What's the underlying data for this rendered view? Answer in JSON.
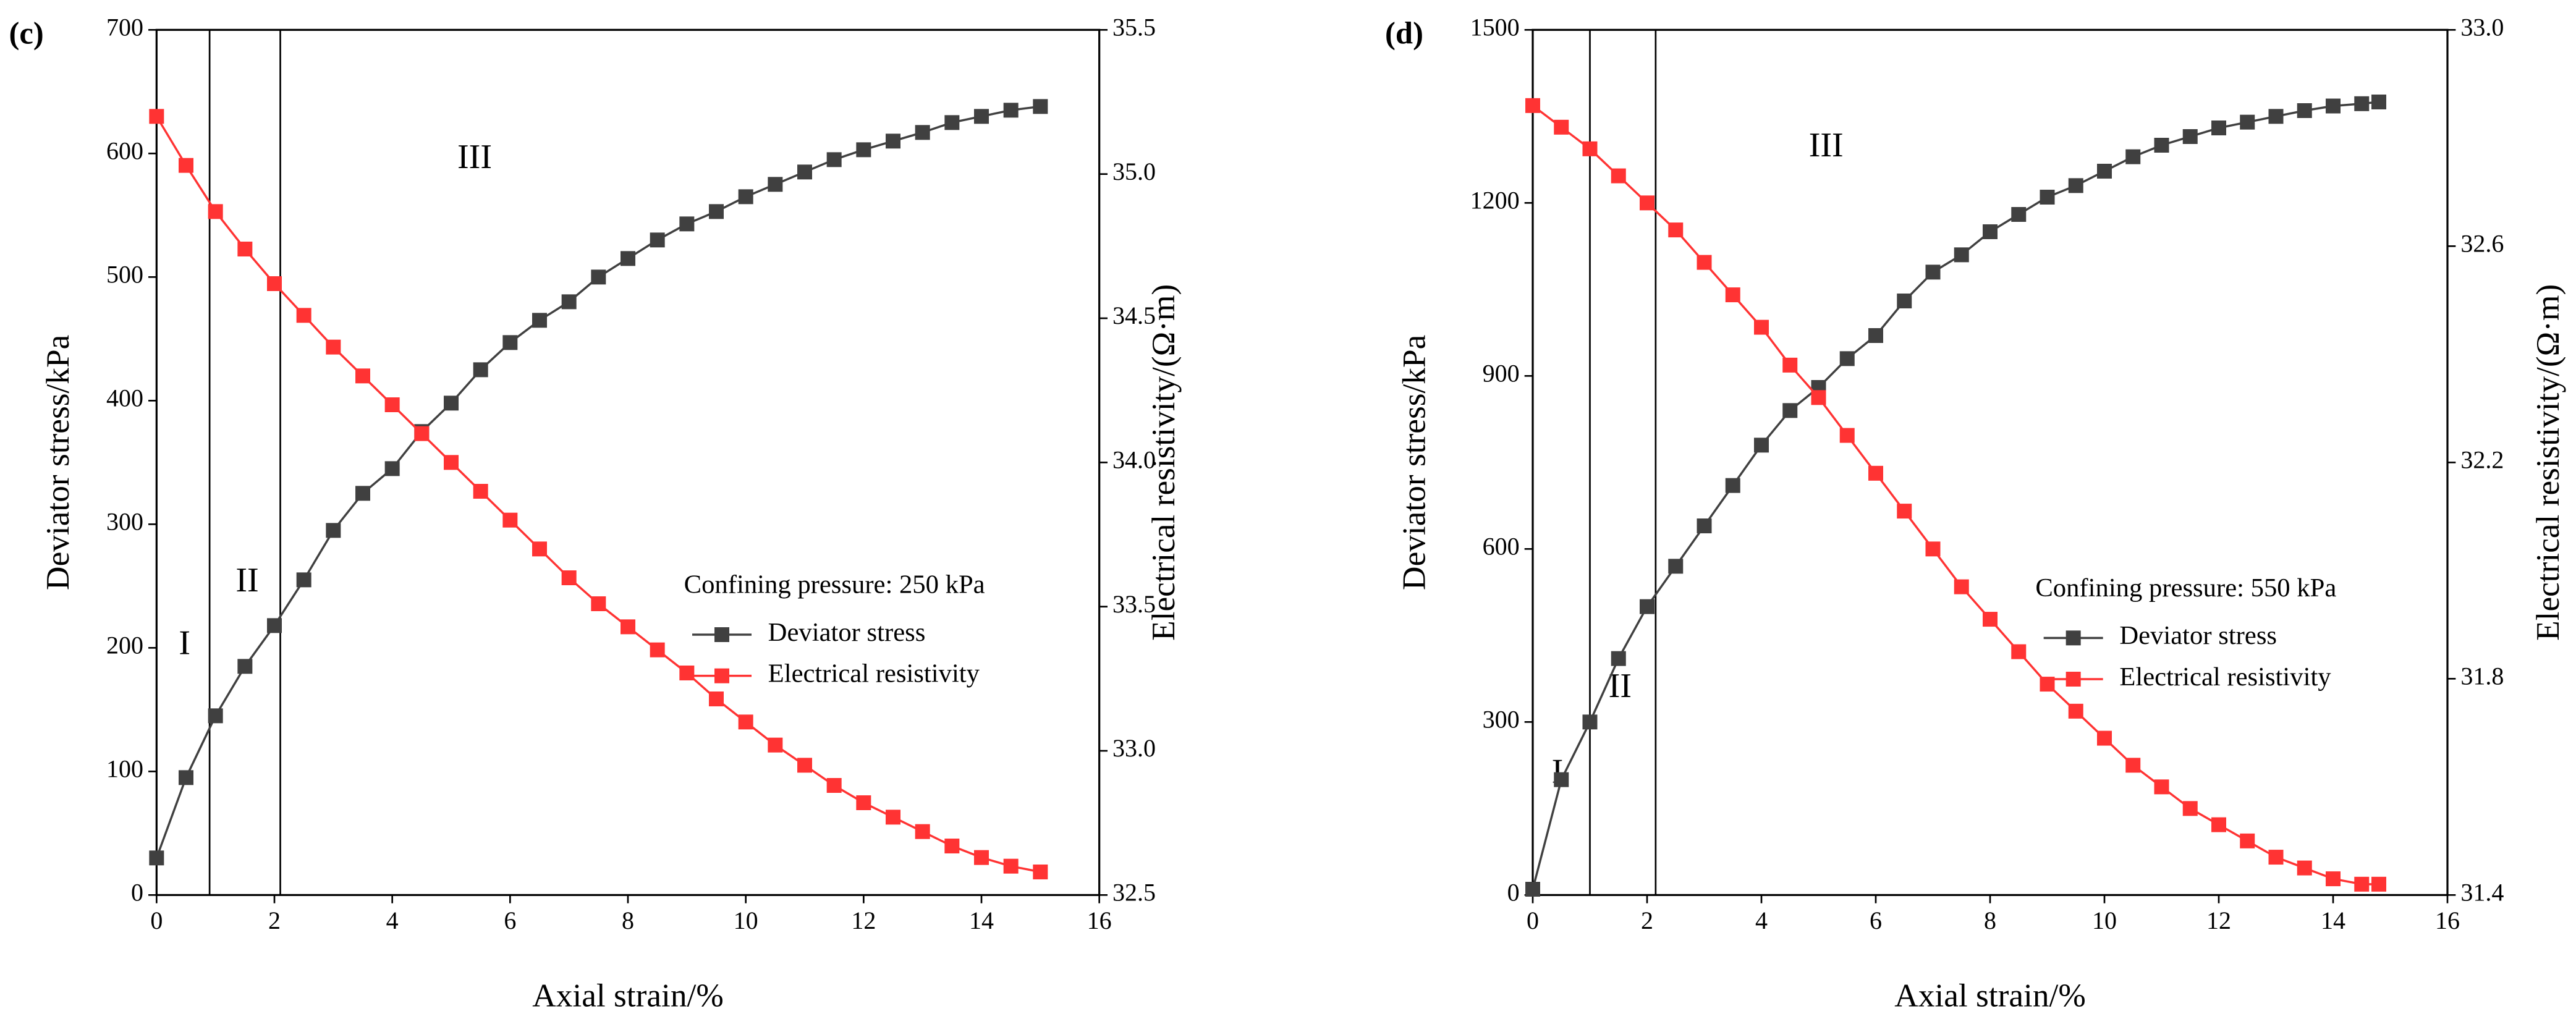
{
  "chart_data": [
    {
      "type": "line",
      "panel_label": "(c)",
      "x_label": "Axial strain/%",
      "y_label": "Deviator stress/kPa",
      "y2_label": "Electrical resistivity/(Ω·m)",
      "legend_title": "Confining pressure: 250 kPa",
      "annotations": [
        "I",
        "II",
        "III"
      ],
      "dividers": [
        0.9,
        2.1
      ],
      "x": [
        0,
        0.5,
        1,
        1.5,
        2,
        2.5,
        3,
        3.5,
        4,
        4.5,
        5,
        5.5,
        6,
        6.5,
        7,
        7.5,
        8,
        8.5,
        9,
        9.5,
        10,
        10.5,
        11,
        11.5,
        12,
        12.5,
        13,
        13.5,
        14,
        14.5,
        15
      ],
      "series": [
        {
          "name": "Deviator stress",
          "color": "#404040",
          "values": [
            30,
            95,
            145,
            185,
            218,
            255,
            295,
            325,
            345,
            375,
            398,
            425,
            447,
            465,
            480,
            500,
            515,
            530,
            543,
            553,
            565,
            575,
            585,
            595,
            603,
            610,
            617,
            625,
            630,
            635,
            638
          ]
        },
        {
          "name": "Electrical resistivity",
          "color": "#ff3333",
          "axis": "y2",
          "values": [
            35.2,
            35.03,
            34.87,
            34.74,
            34.62,
            34.51,
            34.4,
            34.3,
            34.2,
            34.1,
            34.0,
            33.9,
            33.8,
            33.7,
            33.6,
            33.51,
            33.43,
            33.35,
            33.27,
            33.18,
            33.1,
            33.02,
            32.95,
            32.88,
            32.82,
            32.77,
            32.72,
            32.67,
            32.63,
            32.6,
            32.58
          ]
        }
      ],
      "xlim": [
        0,
        16
      ],
      "xticks": [
        0,
        2,
        4,
        6,
        8,
        10,
        12,
        14,
        16
      ],
      "ylim": [
        0,
        700
      ],
      "yticks": [
        0,
        100,
        200,
        300,
        400,
        500,
        600,
        700
      ],
      "y2lim": [
        32.5,
        35.5
      ],
      "y2ticks": [
        32.5,
        {
          "value": 33.0,
          "label": "33.0"
        },
        33.5,
        {
          "value": 34.0,
          "label": "34.0"
        },
        34.5,
        {
          "value": 35.0,
          "label": "35.0"
        },
        35.5
      ]
    },
    {
      "type": "line",
      "panel_label": "(d)",
      "x_label": "Axial strain/%",
      "y_label": "Deviator stress/kPa",
      "y2_label": "Electrical resistivity/(Ω·m)",
      "legend_title": "Confining pressure: 550 kPa",
      "annotations": [
        "I",
        "II",
        "III"
      ],
      "dividers": [
        1.0,
        2.15
      ],
      "x": [
        0,
        0.5,
        1,
        1.5,
        2,
        2.5,
        3,
        3.5,
        4,
        4.5,
        5,
        5.5,
        6,
        6.5,
        7,
        7.5,
        8,
        8.5,
        9,
        9.5,
        10,
        10.5,
        11,
        11.5,
        12,
        12.5,
        13,
        13.5,
        14,
        14.5,
        14.8
      ],
      "series": [
        {
          "name": "Deviator stress",
          "color": "#404040",
          "values": [
            10,
            200,
            300,
            410,
            500,
            570,
            640,
            710,
            780,
            840,
            880,
            930,
            970,
            1030,
            1080,
            1110,
            1150,
            1180,
            1210,
            1230,
            1255,
            1280,
            1300,
            1315,
            1330,
            1340,
            1350,
            1360,
            1368,
            1372,
            1375
          ]
        },
        {
          "name": "Electrical resistivity",
          "color": "#ff3333",
          "axis": "y2",
          "values": [
            32.86,
            32.82,
            32.78,
            32.73,
            32.68,
            32.63,
            32.57,
            32.51,
            32.45,
            32.38,
            32.32,
            32.25,
            32.18,
            32.11,
            32.04,
            31.97,
            31.91,
            31.85,
            31.79,
            31.74,
            31.69,
            31.64,
            31.6,
            31.56,
            31.53,
            31.5,
            31.47,
            31.45,
            31.43,
            31.42,
            31.42
          ]
        }
      ],
      "xlim": [
        0,
        16
      ],
      "xticks": [
        0,
        2,
        4,
        6,
        8,
        10,
        12,
        14,
        16
      ],
      "ylim": [
        0,
        1500
      ],
      "yticks": [
        0,
        300,
        600,
        900,
        1200,
        1500
      ],
      "y2lim": [
        31.4,
        33.0
      ],
      "y2ticks": [
        31.4,
        31.8,
        32.2,
        32.6,
        {
          "value": 33.0,
          "label": "33.0"
        }
      ]
    }
  ]
}
